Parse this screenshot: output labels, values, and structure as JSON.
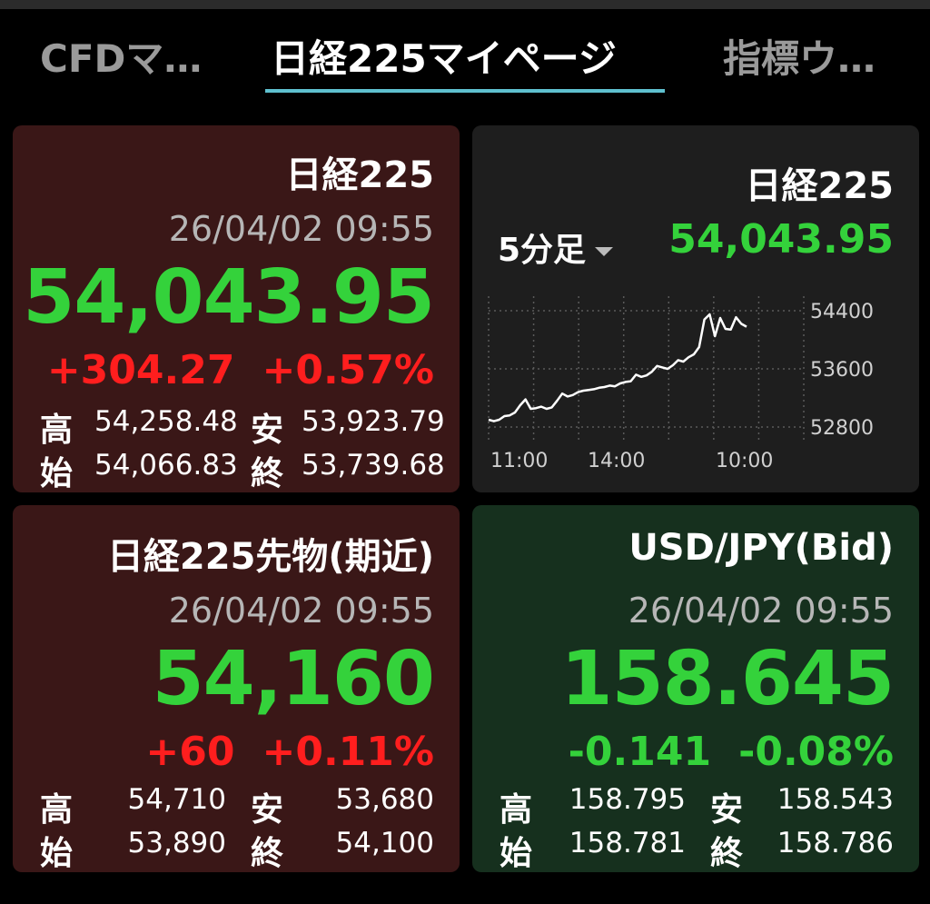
{
  "tabs": [
    {
      "label": "CFDマ…",
      "active": false
    },
    {
      "label": "日経225マイページ",
      "active": true
    },
    {
      "label": "指標ウ…",
      "active": false
    }
  ],
  "cards": {
    "nikkei": {
      "title": "日経225",
      "datetime": "26/04/02 09:55",
      "price": "54,043.95",
      "change": "+304.27",
      "change_pct": "+0.57%",
      "high_label": "高",
      "high": "54,258.48",
      "low_label": "安",
      "low": "53,923.79",
      "open_label": "始",
      "open": "54,066.83",
      "close_label": "終",
      "close": "53,739.68"
    },
    "chart": {
      "title": "日経225",
      "period": "5分足",
      "price": "54,043.95"
    },
    "futures": {
      "title": "日経225先物(期近)",
      "datetime": "26/04/02 09:55",
      "price": "54,160",
      "change": "+60",
      "change_pct": "+0.11%",
      "high_label": "高",
      "high": "54,710",
      "low_label": "安",
      "low": "53,680",
      "open_label": "始",
      "open": "53,890",
      "close_label": "終",
      "close": "54,100"
    },
    "usdjpy": {
      "title": "USD/JPY(Bid)",
      "datetime": "26/04/02 09:55",
      "price": "158.645",
      "change": "-0.141",
      "change_pct": "-0.08%",
      "high_label": "高",
      "high": "158.795",
      "low_label": "安",
      "low": "158.543",
      "open_label": "始",
      "open": "158.781",
      "close_label": "終",
      "close": "158.786"
    }
  },
  "colors": {
    "up": "#ff1e1e",
    "down": "#34d23b",
    "price": "#34d23b",
    "tab_underline": "#5fc0cf"
  },
  "chart_data": {
    "type": "line",
    "ylim": [
      52600,
      54600
    ],
    "y_ticks": [
      "54400",
      "53600",
      "52800"
    ],
    "x_ticks": [
      "11:00",
      "14:00",
      "10:00"
    ],
    "grid": true,
    "values": [
      52900,
      52880,
      52900,
      52950,
      52960,
      53000,
      53100,
      53180,
      53050,
      53060,
      53080,
      53050,
      53070,
      53160,
      53260,
      53220,
      53240,
      53280,
      53300,
      53310,
      53320,
      53340,
      53350,
      53370,
      53360,
      53400,
      53420,
      53430,
      53520,
      53490,
      53510,
      53560,
      53640,
      53620,
      53600,
      53650,
      53720,
      53700,
      53760,
      53800,
      53900,
      54280,
      54350,
      54050,
      54300,
      54150,
      54140,
      54310,
      54220,
      54180
    ]
  }
}
